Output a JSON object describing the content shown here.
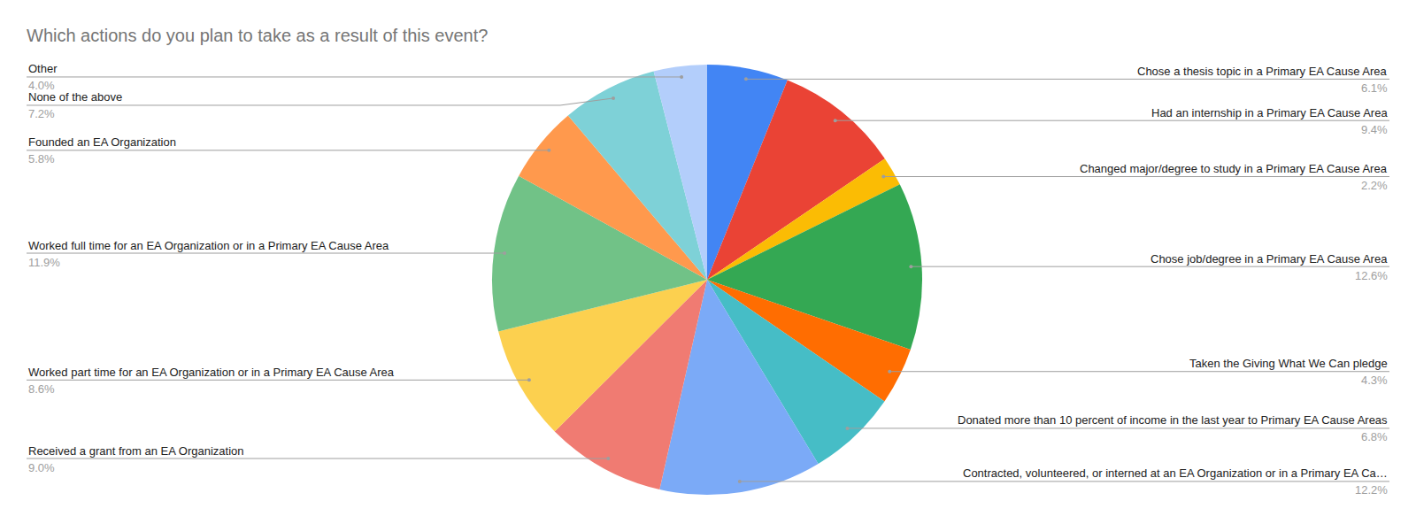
{
  "chart_data": {
    "type": "pie",
    "title": "Which actions do you plan to take as a result of this event?",
    "categories": [
      "Chose a thesis topic in a Primary EA Cause Area",
      "Had an internship in a Primary EA Cause Area",
      "Changed major/degree to study in a Primary EA Cause Area",
      "Chose job/degree in a Primary EA Cause Area",
      "Taken the Giving What We Can pledge",
      "Donated more than 10 percent of income in the last year to Primary EA Cause Areas",
      "Contracted, volunteered, or interned at an EA Organization or in a Primary EA Ca…",
      "Received a grant from an EA Organization",
      "Worked part time for an EA Organization or in a Primary EA Cause Area",
      "Worked full time for an EA Organization or in a Primary EA Cause Area",
      "Founded an EA Organization",
      "None of the above",
      "Other"
    ],
    "values": [
      6.1,
      9.4,
      2.2,
      12.6,
      4.3,
      6.8,
      12.2,
      9.0,
      8.6,
      11.9,
      5.8,
      7.2,
      4.0
    ],
    "value_labels": [
      "6.1%",
      "9.4%",
      "2.2%",
      "12.6%",
      "4.3%",
      "6.8%",
      "12.2%",
      "9.0%",
      "8.6%",
      "11.9%",
      "5.8%",
      "7.2%",
      "4.0%"
    ],
    "colors": [
      "#4285f4",
      "#ea4335",
      "#fbbc04",
      "#34a853",
      "#ff6d01",
      "#46bdc6",
      "#7baaf7",
      "#f07b72",
      "#fcd04f",
      "#71c287",
      "#ff994d",
      "#7ed1d7",
      "#b3cefb"
    ],
    "data_labels": true
  }
}
